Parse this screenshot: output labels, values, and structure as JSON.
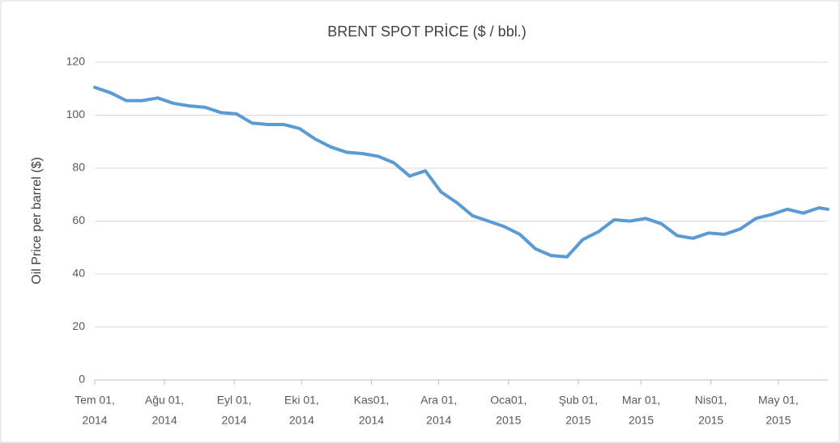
{
  "chart_data": {
    "type": "line",
    "title": "BRENT SPOT PRİCE ($ / bbl.)",
    "y_label": "Oil Price per barrel ($)",
    "x": [
      "2014-07-01",
      "2014-07-08",
      "2014-07-15",
      "2014-07-22",
      "2014-07-29",
      "2014-08-05",
      "2014-08-12",
      "2014-08-19",
      "2014-08-26",
      "2014-09-02",
      "2014-09-09",
      "2014-09-16",
      "2014-09-23",
      "2014-09-30",
      "2014-10-07",
      "2014-10-14",
      "2014-10-21",
      "2014-10-28",
      "2014-11-04",
      "2014-11-11",
      "2014-11-18",
      "2014-11-25",
      "2014-12-02",
      "2014-12-09",
      "2014-12-16",
      "2014-12-23",
      "2014-12-30",
      "2015-01-06",
      "2015-01-13",
      "2015-01-20",
      "2015-01-27",
      "2015-02-03",
      "2015-02-10",
      "2015-02-17",
      "2015-02-24",
      "2015-03-03",
      "2015-03-10",
      "2015-03-17",
      "2015-03-24",
      "2015-03-31",
      "2015-04-07",
      "2015-04-14",
      "2015-04-21",
      "2015-04-28",
      "2015-05-05",
      "2015-05-12",
      "2015-05-19",
      "2015-05-23"
    ],
    "series": [
      {
        "name": "Brent",
        "color": "#5b9bd5",
        "values": [
          110.5,
          108.5,
          105.5,
          105.5,
          106.5,
          104.5,
          103.5,
          103,
          101,
          100.5,
          97,
          96.5,
          96.5,
          95,
          91,
          88,
          86,
          85.5,
          84.5,
          82,
          77,
          79,
          71,
          67,
          62,
          60,
          58,
          55,
          49.5,
          47,
          46.5,
          53,
          56,
          60.5,
          60,
          61,
          59,
          54.5,
          53.5,
          55.5,
          55,
          57,
          61,
          62.5,
          64.5,
          63,
          65,
          64.5
        ]
      }
    ],
    "xlim": [
      "2014-07-01",
      "2015-05-23"
    ],
    "xticks": [
      {
        "value": "2014-07-01",
        "label": [
          "Tem 01,",
          "2014"
        ]
      },
      {
        "value": "2014-08-01",
        "label": [
          "Ağu 01,",
          "2014"
        ]
      },
      {
        "value": "2014-09-01",
        "label": [
          "Eyl 01,",
          "2014"
        ]
      },
      {
        "value": "2014-10-01",
        "label": [
          "Eki 01,",
          "2014"
        ]
      },
      {
        "value": "2014-11-01",
        "label": [
          "Kas01,",
          "2014"
        ]
      },
      {
        "value": "2014-12-01",
        "label": [
          "Ara 01,",
          "2014"
        ]
      },
      {
        "value": "2015-01-01",
        "label": [
          "Oca01,",
          "2015"
        ]
      },
      {
        "value": "2015-02-01",
        "label": [
          "Şub 01,",
          "2015"
        ]
      },
      {
        "value": "2015-03-01",
        "label": [
          "Mar 01,",
          "2015"
        ]
      },
      {
        "value": "2015-04-01",
        "label": [
          "Nis01,",
          "2015"
        ]
      },
      {
        "value": "2015-05-01",
        "label": [
          "May 01,",
          "2015"
        ]
      }
    ],
    "ylim": [
      0,
      120
    ],
    "yticks": [
      0,
      20,
      40,
      60,
      80,
      100,
      120
    ],
    "grid": true
  }
}
